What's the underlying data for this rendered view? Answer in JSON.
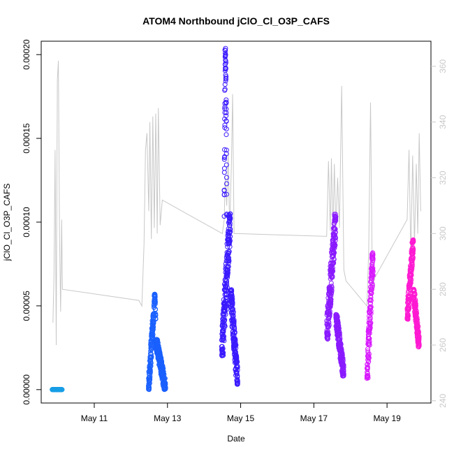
{
  "chart_data": {
    "type": "scatter",
    "title": "ATOM4 Northbound jClO_Cl_O3P_CAFS",
    "xlabel": "Date",
    "ylabel": "jClO_Cl_O3P_CAFS",
    "x_ticks": [
      "May 11",
      "May 13",
      "May 15",
      "May 17",
      "May 19"
    ],
    "x_tick_days": [
      11,
      13,
      15,
      17,
      19
    ],
    "x_range_days": [
      9.55,
      20.2
    ],
    "y_ticks": [
      "0.00000",
      "0.00005",
      "0.00010",
      "0.00015",
      "0.00020"
    ],
    "y_tick_values": [
      0,
      5e-05,
      0.0001,
      0.00015,
      0.0002
    ],
    "ylim": [
      -8e-06,
      0.000208
    ],
    "y2_ticks": [
      "240",
      "260",
      "280",
      "300",
      "320",
      "340",
      "360"
    ],
    "y2_tick_values": [
      240,
      260,
      280,
      300,
      320,
      340,
      360
    ],
    "y2lim": [
      239.2,
      369
    ],
    "grid": false,
    "legend": "none",
    "series": [
      {
        "color": "#1a9fe6",
        "segments": [
          {
            "x0": 9.85,
            "x1": 10.12,
            "lo": 0.0,
            "hi": 0.0,
            "mode": "flat"
          }
        ]
      },
      {
        "color": "#1a60ff",
        "segments": [
          {
            "x0": 12.48,
            "x1": 12.62,
            "lo": 0.0,
            "hi": 4.5e-05,
            "mode": "rise"
          },
          {
            "x0": 12.62,
            "x1": 12.68,
            "lo": 4e-05,
            "hi": 5.7e-05,
            "mode": "peak"
          },
          {
            "x0": 12.68,
            "x1": 12.95,
            "lo": 0.0,
            "hi": 3e-05,
            "mode": "fall"
          }
        ]
      },
      {
        "color": "#3a1aff",
        "segments": [
          {
            "x0": 14.48,
            "x1": 14.72,
            "lo": 2e-05,
            "hi": 0.000105,
            "mode": "rise"
          },
          {
            "x0": 14.55,
            "x1": 14.62,
            "lo": 0.0001,
            "hi": 0.000204,
            "mode": "peak"
          },
          {
            "x0": 14.72,
            "x1": 14.92,
            "lo": 3e-06,
            "hi": 6e-05,
            "mode": "fall"
          }
        ]
      },
      {
        "color": "#8a1aff",
        "segments": [
          {
            "x0": 17.35,
            "x1": 17.6,
            "lo": 3e-05,
            "hi": 0.000105,
            "mode": "rise"
          },
          {
            "x0": 17.6,
            "x1": 17.82,
            "lo": 8e-06,
            "hi": 4.5e-05,
            "mode": "fall"
          }
        ]
      },
      {
        "color": "#d81aff",
        "segments": [
          {
            "x0": 18.45,
            "x1": 18.62,
            "lo": 6e-06,
            "hi": 8.2e-05,
            "mode": "rise"
          }
        ]
      },
      {
        "color": "#ff1ad2",
        "segments": [
          {
            "x0": 19.55,
            "x1": 19.72,
            "lo": 4.2e-05,
            "hi": 9e-05,
            "mode": "rise"
          },
          {
            "x0": 19.72,
            "x1": 19.88,
            "lo": 2.5e-05,
            "hi": 6e-05,
            "mode": "fall"
          }
        ]
      }
    ],
    "secondary_series": {
      "color": "#c8c8c8",
      "unit_axis": "right",
      "points": [
        [
          9.87,
          268
        ],
        [
          9.9,
          285
        ],
        [
          9.93,
          330
        ],
        [
          9.96,
          260
        ],
        [
          9.99,
          355
        ],
        [
          10.02,
          362
        ],
        [
          10.05,
          300
        ],
        [
          10.08,
          272
        ],
        [
          10.11,
          305
        ],
        [
          10.13,
          280
        ],
        [
          12.22,
          276
        ],
        [
          12.3,
          274
        ],
        [
          12.36,
          296
        ],
        [
          12.4,
          330
        ],
        [
          12.44,
          336
        ],
        [
          12.49,
          308
        ],
        [
          12.52,
          340
        ],
        [
          12.56,
          298
        ],
        [
          12.6,
          342
        ],
        [
          12.64,
          302
        ],
        [
          12.68,
          343
        ],
        [
          12.72,
          300
        ],
        [
          12.75,
          345
        ],
        [
          12.8,
          303
        ],
        [
          12.86,
          312
        ],
        [
          14.5,
          300
        ],
        [
          14.55,
          305
        ],
        [
          14.58,
          320
        ],
        [
          14.62,
          310
        ],
        [
          14.66,
          329
        ],
        [
          14.7,
          301
        ],
        [
          14.75,
          327
        ],
        [
          14.78,
          350
        ],
        [
          14.82,
          300
        ],
        [
          14.9,
          300
        ],
        [
          17.35,
          299
        ],
        [
          17.4,
          326
        ],
        [
          17.45,
          301
        ],
        [
          17.48,
          327
        ],
        [
          17.52,
          300
        ],
        [
          17.56,
          325
        ],
        [
          17.6,
          301
        ],
        [
          17.65,
          320
        ],
        [
          17.7,
          302
        ],
        [
          17.76,
          353
        ],
        [
          17.82,
          287
        ],
        [
          17.88,
          283
        ],
        [
          18.45,
          274
        ],
        [
          18.5,
          294
        ],
        [
          18.55,
          347
        ],
        [
          18.6,
          280
        ],
        [
          18.66,
          284
        ],
        [
          19.55,
          305
        ],
        [
          19.6,
          330
        ],
        [
          19.65,
          292
        ],
        [
          19.7,
          328
        ],
        [
          19.75,
          296
        ],
        [
          19.8,
          325
        ],
        [
          19.84,
          300
        ],
        [
          19.88,
          336
        ],
        [
          19.92,
          308
        ]
      ]
    }
  }
}
